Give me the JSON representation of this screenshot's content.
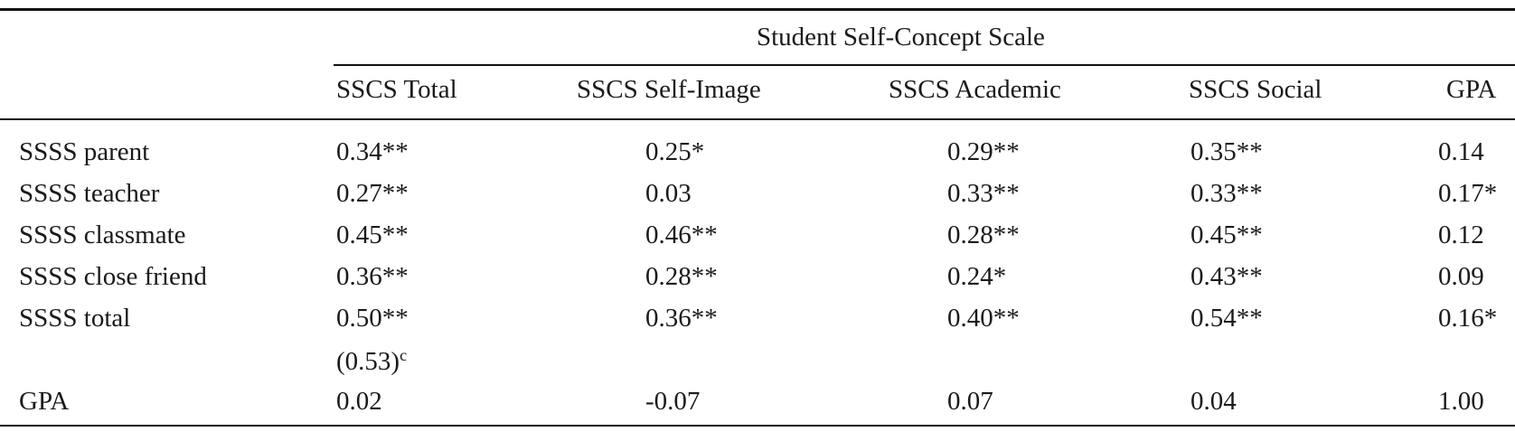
{
  "table": {
    "spanner": "Student Self-Concept Scale",
    "columns": [
      "SSCS Total",
      "SSCS Self-Image",
      "SSCS Academic",
      "SSCS Social",
      "GPA"
    ],
    "rows": [
      [
        "SSSS parent",
        "0.34**",
        "0.25*",
        "0.29**",
        "0.35**",
        "0.14"
      ],
      [
        "SSSS teacher",
        "0.27**",
        "0.03",
        "0.33**",
        "0.33**",
        "0.17*"
      ],
      [
        "SSSS classmate",
        "0.45**",
        "0.46**",
        "0.28**",
        "0.45**",
        "0.12"
      ],
      [
        "SSSS close friend",
        "0.36**",
        "0.28**",
        "0.24*",
        "0.43**",
        "0.09"
      ],
      [
        "SSSS total",
        "0.50**",
        "0.36**",
        "0.40**",
        "0.54**",
        "0.16*"
      ],
      [
        "GPA",
        "0.02",
        "-0.07",
        "0.07",
        "0.04",
        "1.00"
      ]
    ],
    "note": {
      "text": "(0.53)",
      "sup": "c"
    }
  }
}
